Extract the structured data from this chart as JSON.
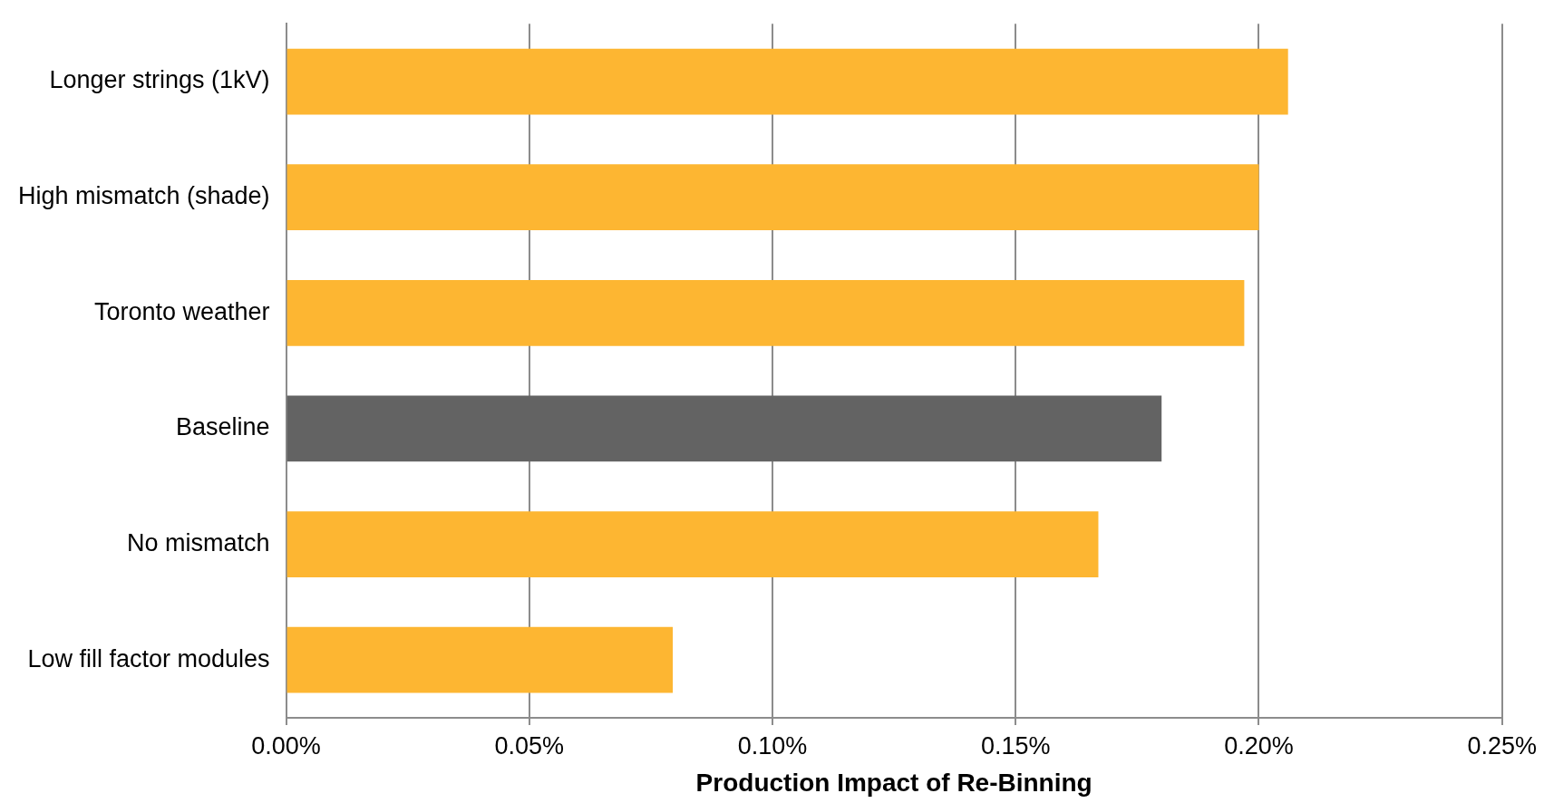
{
  "chart_data": {
    "type": "bar",
    "orientation": "horizontal",
    "xlabel": "Production Impact of Re-Binning",
    "categories": [
      "Longer strings (1kV)",
      "High mismatch (shade)",
      "Toronto weather",
      "Baseline",
      "No mismatch",
      "Low fill factor modules"
    ],
    "values": [
      0.206,
      0.2,
      0.197,
      0.18,
      0.167,
      0.0795
    ],
    "colors": [
      "#fdb632",
      "#fdb632",
      "#fdb632",
      "#636363",
      "#fdb632",
      "#fdb632"
    ],
    "xlim": [
      0,
      0.25
    ],
    "xticks": [
      {
        "value": 0,
        "label": "0.00%"
      },
      {
        "value": 0.05,
        "label": "0.05%"
      },
      {
        "value": 0.1,
        "label": "0.10%"
      },
      {
        "value": 0.15,
        "label": "0.15%"
      },
      {
        "value": 0.2,
        "label": "0.20%"
      },
      {
        "value": 0.25,
        "label": "0.25%"
      }
    ],
    "grid": "x",
    "legend": false
  }
}
